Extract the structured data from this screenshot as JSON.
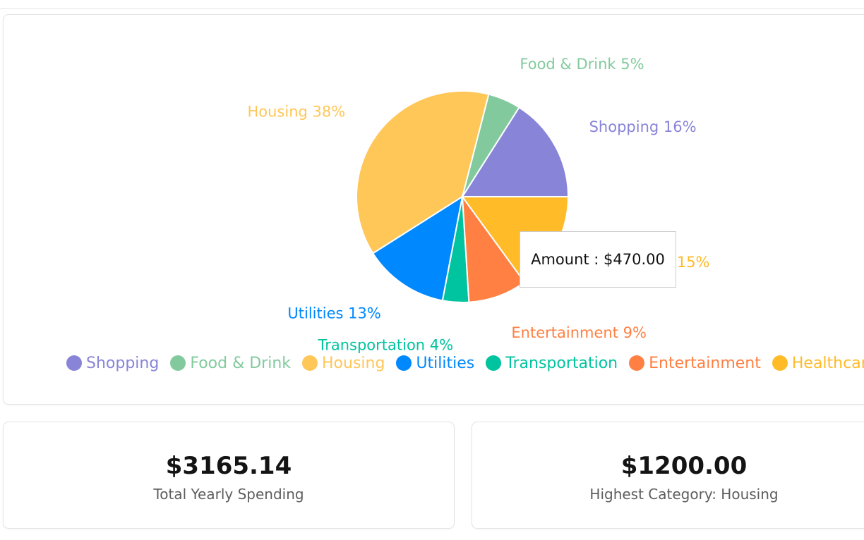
{
  "chart_data": {
    "type": "pie",
    "slices": [
      {
        "name": "Shopping",
        "percent": 16,
        "color": "#8884d8"
      },
      {
        "name": "Food & Drink",
        "percent": 5,
        "color": "#82ca9d"
      },
      {
        "name": "Housing",
        "percent": 38,
        "color": "#ffc658"
      },
      {
        "name": "Utilities",
        "percent": 13,
        "color": "#0088fe"
      },
      {
        "name": "Transportation",
        "percent": 4,
        "color": "#00c49f"
      },
      {
        "name": "Entertainment",
        "percent": 9,
        "color": "#ff8042"
      },
      {
        "name": "Healthcare",
        "percent": 15,
        "color": "#ffbb28"
      }
    ],
    "legend": [
      "Shopping",
      "Food & Drink",
      "Housing",
      "Utilities",
      "Transportation",
      "Entertainment",
      "Healthcare"
    ],
    "legend_placement": "bottom",
    "tooltip": {
      "text": "Amount : $470.00"
    }
  },
  "stats": {
    "total": {
      "value": "$3165.14",
      "label": "Total Yearly Spending"
    },
    "highest": {
      "value": "$1200.00",
      "label": "Highest Category: Housing"
    }
  }
}
